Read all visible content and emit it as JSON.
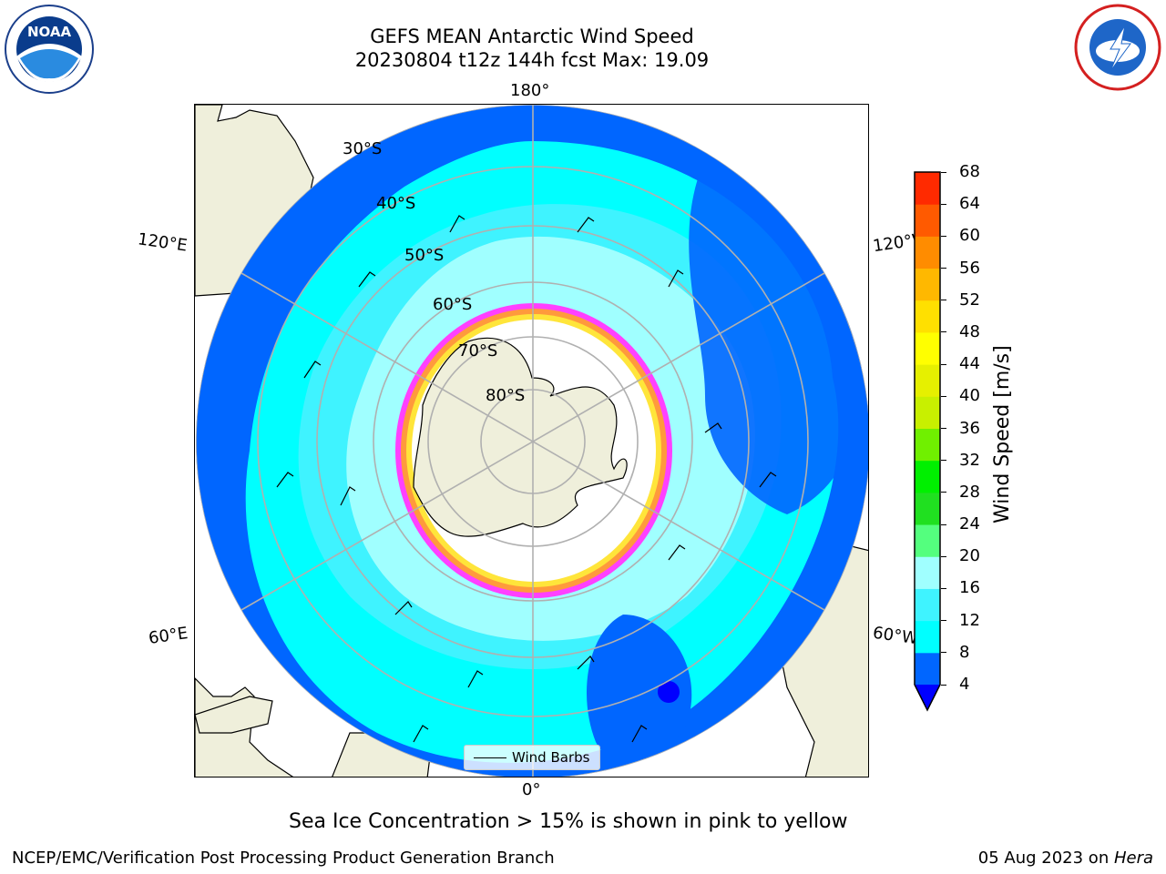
{
  "header": {
    "title_line1": "GEFS MEAN Antarctic Wind Speed",
    "title_line2": "20230804 t12z 144h fcst   Max: 19.09"
  },
  "logos": {
    "left": {
      "name": "noaa-logo",
      "text": "NOAA",
      "ring_text": "NATIONAL OCEANIC AND ATMOSPHERIC ADMINISTRATION · U.S. DEPARTMENT OF COMMERCE"
    },
    "right": {
      "name": "nws-logo",
      "ring_text": "NATIONAL WEATHER SERVICE"
    }
  },
  "map": {
    "projection": "south-polar-stereographic",
    "longitude_labels": {
      "top": "180°",
      "bottom": "0°",
      "left_upper": "120°E",
      "left_lower": "60°E",
      "right_upper": "120°W",
      "right_lower": "60°W"
    },
    "latitude_labels": [
      "30°S",
      "40°S",
      "50°S",
      "60°S",
      "70°S",
      "80°S"
    ],
    "legend_label": "Wind Barbs",
    "sea_ice_colors": [
      "#ff40ff",
      "#ff9a3c",
      "#ffe53a"
    ]
  },
  "colorbar": {
    "label": "Wind Speed [m/s]",
    "ticks": [
      "4",
      "8",
      "12",
      "16",
      "20",
      "24",
      "28",
      "32",
      "36",
      "40",
      "44",
      "48",
      "52",
      "56",
      "60",
      "64",
      "68"
    ],
    "colors": [
      "#0066ff",
      "#00ffff",
      "#3ff3ff",
      "#a0ffff",
      "#54ff7e",
      "#20e020",
      "#00f000",
      "#70f000",
      "#c8f000",
      "#e6f000",
      "#ffff00",
      "#ffe000",
      "#ffb800",
      "#ff8c00",
      "#ff5a00",
      "#ff2a00"
    ],
    "under_color": "#0000ff"
  },
  "note": "Sea Ice Concentration > 15% is shown in pink to yellow",
  "footer": {
    "left": "NCEP/EMC/Verification Post Processing Product Generation Branch",
    "right_prefix": "05 Aug 2023 on ",
    "right_italic": "Hera"
  }
}
